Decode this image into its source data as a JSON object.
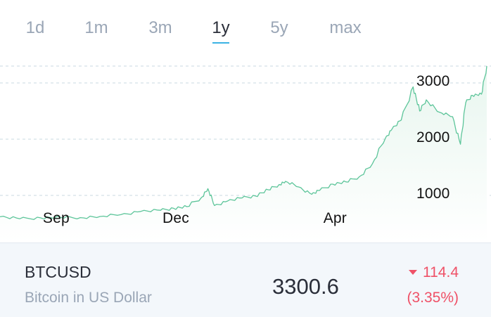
{
  "tabs": [
    {
      "label": "1d",
      "active": false
    },
    {
      "label": "1m",
      "active": false
    },
    {
      "label": "3m",
      "active": false
    },
    {
      "label": "1y",
      "active": true
    },
    {
      "label": "5y",
      "active": false
    },
    {
      "label": "max",
      "active": false
    }
  ],
  "colors": {
    "accent": "#3bb3e4",
    "line": "#5dc59a",
    "fill": "#e8f6ef",
    "negative": "#ef5167",
    "muted": "#9aa6b6"
  },
  "chart_data": {
    "type": "area",
    "x_ticks": [
      "Sep",
      "Dec",
      "Apr"
    ],
    "y_ticks": [
      1000,
      2000,
      3000
    ],
    "ylim": [
      0,
      3300
    ],
    "grid": "horizontal dashed",
    "x": [
      "2016-07-31",
      "2016-08-15",
      "2016-08-31",
      "2016-09-15",
      "2016-09-30",
      "2016-10-15",
      "2016-10-31",
      "2016-11-15",
      "2016-11-30",
      "2016-12-10",
      "2016-12-20",
      "2016-12-31",
      "2017-01-05",
      "2017-01-10",
      "2017-01-20",
      "2017-01-31",
      "2017-02-10",
      "2017-02-20",
      "2017-02-28",
      "2017-03-05",
      "2017-03-15",
      "2017-03-25",
      "2017-03-31",
      "2017-04-10",
      "2017-04-20",
      "2017-04-30",
      "2017-05-10",
      "2017-05-20",
      "2017-05-25",
      "2017-06-01",
      "2017-06-10",
      "2017-06-15",
      "2017-06-20",
      "2017-06-30",
      "2017-07-10",
      "2017-07-16",
      "2017-07-20",
      "2017-07-25",
      "2017-08-01",
      "2017-08-05"
    ],
    "series": [
      {
        "values": [
          620,
          585,
          600,
          610,
          605,
          625,
          660,
          715,
          735,
          770,
          800,
          960,
          1120,
          820,
          900,
          955,
          990,
          1100,
          1190,
          1250,
          1150,
          1020,
          1090,
          1200,
          1240,
          1330,
          1560,
          2020,
          2180,
          2340,
          2930,
          2500,
          2700,
          2480,
          2400,
          1910,
          2650,
          2780,
          2800,
          3300
        ]
      }
    ]
  },
  "ticker": {
    "symbol": "BTCUSD",
    "description": "Bitcoin in US Dollar",
    "price": "3300.6",
    "change": "114.4",
    "change_pct": "(3.35%)",
    "direction": "down"
  }
}
